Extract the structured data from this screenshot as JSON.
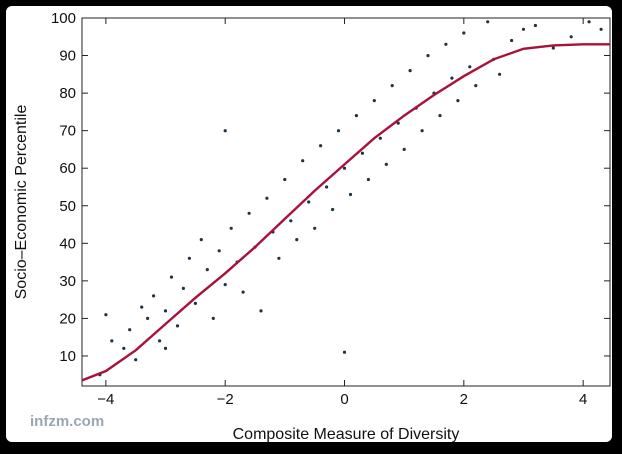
{
  "chart_data": {
    "type": "scatter",
    "xlabel": "Composite Measure of Diversity",
    "ylabel": "Socio–Economic Percentile",
    "xlim": [
      -4.4,
      4.45
    ],
    "ylim": [
      2,
      100
    ],
    "xticks": [
      -4,
      -2,
      0,
      2,
      4
    ],
    "yticks": [
      10,
      20,
      30,
      40,
      50,
      60,
      70,
      80,
      90,
      100
    ],
    "grid": false,
    "scatter_color": "#1d3446",
    "curve_color": "#a8123a",
    "points": [
      [
        -4.1,
        5
      ],
      [
        -4.0,
        21
      ],
      [
        -3.9,
        14
      ],
      [
        -3.7,
        12
      ],
      [
        -3.6,
        17
      ],
      [
        -3.5,
        9
      ],
      [
        -3.4,
        23
      ],
      [
        -3.3,
        20
      ],
      [
        -3.2,
        26
      ],
      [
        -3.1,
        14
      ],
      [
        -3.0,
        12
      ],
      [
        -3.0,
        22
      ],
      [
        -2.9,
        31
      ],
      [
        -2.8,
        18
      ],
      [
        -2.7,
        28
      ],
      [
        -2.6,
        36
      ],
      [
        -2.5,
        24
      ],
      [
        -2.4,
        41
      ],
      [
        -2.3,
        33
      ],
      [
        -2.2,
        20
      ],
      [
        -2.1,
        38
      ],
      [
        -2.0,
        29
      ],
      [
        -2.0,
        70
      ],
      [
        -1.9,
        44
      ],
      [
        -1.8,
        35
      ],
      [
        -1.7,
        27
      ],
      [
        -1.6,
        48
      ],
      [
        -1.5,
        39
      ],
      [
        -1.4,
        22
      ],
      [
        -1.3,
        52
      ],
      [
        -1.2,
        43
      ],
      [
        -1.1,
        36
      ],
      [
        -1.0,
        57
      ],
      [
        -0.9,
        46
      ],
      [
        -0.8,
        41
      ],
      [
        -0.7,
        62
      ],
      [
        -0.6,
        51
      ],
      [
        -0.5,
        44
      ],
      [
        -0.4,
        66
      ],
      [
        -0.3,
        55
      ],
      [
        -0.2,
        49
      ],
      [
        -0.1,
        70
      ],
      [
        0.0,
        60
      ],
      [
        0.0,
        11
      ],
      [
        0.1,
        53
      ],
      [
        0.2,
        74
      ],
      [
        0.3,
        64
      ],
      [
        0.4,
        57
      ],
      [
        0.5,
        78
      ],
      [
        0.6,
        68
      ],
      [
        0.7,
        61
      ],
      [
        0.8,
        82
      ],
      [
        0.9,
        72
      ],
      [
        1.0,
        65
      ],
      [
        1.1,
        86
      ],
      [
        1.2,
        76
      ],
      [
        1.3,
        70
      ],
      [
        1.4,
        90
      ],
      [
        1.5,
        80
      ],
      [
        1.6,
        74
      ],
      [
        1.7,
        93
      ],
      [
        1.8,
        84
      ],
      [
        1.9,
        78
      ],
      [
        2.0,
        96
      ],
      [
        2.1,
        87
      ],
      [
        2.2,
        82
      ],
      [
        2.4,
        99
      ],
      [
        2.5,
        89
      ],
      [
        2.6,
        85
      ],
      [
        2.8,
        94
      ],
      [
        3.0,
        97
      ],
      [
        3.2,
        98
      ],
      [
        3.5,
        92
      ],
      [
        3.8,
        95
      ],
      [
        4.1,
        99
      ],
      [
        4.3,
        97
      ]
    ],
    "curve": {
      "x": [
        -4.4,
        -4.0,
        -3.5,
        -3.0,
        -2.5,
        -2.0,
        -1.5,
        -1.0,
        -0.5,
        0.0,
        0.5,
        1.0,
        1.5,
        2.0,
        2.5,
        3.0,
        3.5,
        4.0,
        4.45
      ],
      "y": [
        3.5,
        6.0,
        11.5,
        18.5,
        25.5,
        32.0,
        39.0,
        46.5,
        54.0,
        61.0,
        68.0,
        74.0,
        79.5,
        84.5,
        89.0,
        91.8,
        92.7,
        93.0,
        93.0
      ]
    },
    "watermark": "infzm.com"
  }
}
